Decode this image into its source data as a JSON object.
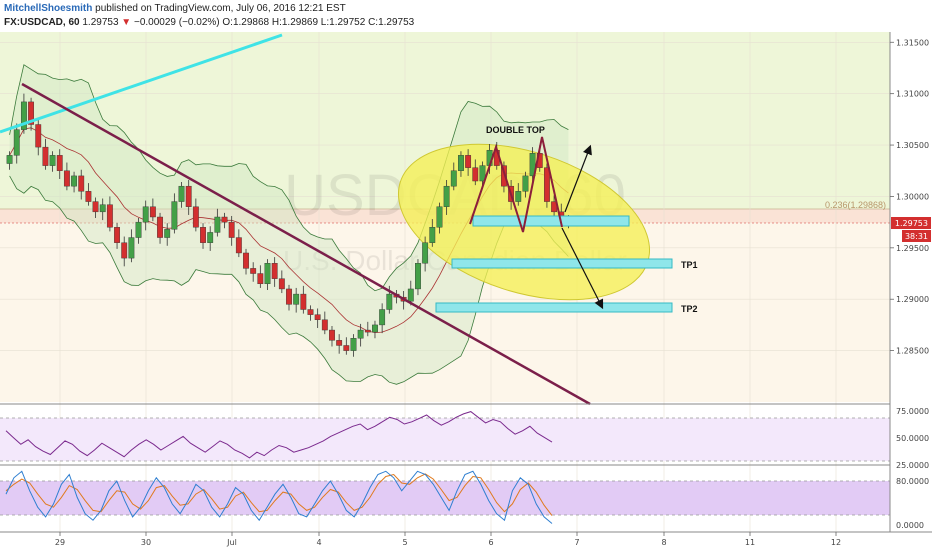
{
  "header": {
    "author": "MitchellShoesmith",
    "published": "published on TradingView.com, July 06, 2016 12:21 EST",
    "symbol": "FX:USDCAD, 60",
    "last": "1.29753",
    "change": "−0.00029 (−0.02%)",
    "ohlc": "O:1.29868 H:1.29869 L:1.29752 C:1.29753"
  },
  "watermark": {
    "line1": "USDCAD, 60",
    "line2": "U.S. Dollar/Canadian Dollar"
  },
  "annotations": {
    "double_top": "DOUBLE TOP",
    "tp1": "TP1",
    "tp2": "TP2",
    "fib": "0.236(1.29868)"
  },
  "price_axis": {
    "ticks": [
      "1.31500",
      "1.31000",
      "1.30500",
      "1.30000",
      "1.29500",
      "1.29000",
      "1.28500"
    ],
    "current": "1.29753",
    "countdown": "38:31"
  },
  "rsi_axis": {
    "ticks": [
      "75.0000",
      "50.0000",
      "25.0000"
    ]
  },
  "stoch_axis": {
    "ticks": [
      "80.0000",
      "0.0000"
    ]
  },
  "time_axis": {
    "ticks": [
      "29",
      "30",
      "Jul",
      "4",
      "5",
      "6",
      "7",
      "8",
      "11",
      "12"
    ]
  },
  "colors": {
    "up": "#43a047",
    "down": "#d32f2f",
    "trend": "#7b1f4a",
    "cyan": "#3fe3e6",
    "zone": "#8fe6ea",
    "ellipse": "#f5ef55"
  },
  "chart_data": {
    "type": "candlestick",
    "title": "FX:USDCAD, 60",
    "ylim": [
      1.28,
      1.316
    ],
    "x_labels": [
      "29",
      "30",
      "Jul",
      "4",
      "5",
      "6",
      "7",
      "8",
      "11",
      "12"
    ],
    "closes": [
      1.304,
      1.3065,
      1.3092,
      1.307,
      1.3048,
      1.303,
      1.304,
      1.3025,
      1.301,
      1.302,
      1.3005,
      1.2995,
      1.2985,
      1.2992,
      1.297,
      1.2955,
      1.294,
      1.296,
      1.2975,
      1.299,
      1.298,
      1.296,
      1.2968,
      1.2995,
      1.301,
      1.299,
      1.297,
      1.2955,
      1.2965,
      1.298,
      1.2975,
      1.296,
      1.2945,
      1.293,
      1.2925,
      1.2915,
      1.2935,
      1.292,
      1.291,
      1.2895,
      1.2905,
      1.289,
      1.2885,
      1.288,
      1.287,
      1.286,
      1.2855,
      1.285,
      1.2862,
      1.287,
      1.2868,
      1.2875,
      1.289,
      1.2905,
      1.2902,
      1.2898,
      1.291,
      1.2935,
      1.2955,
      1.297,
      1.299,
      1.301,
      1.3025,
      1.304,
      1.3028,
      1.3015,
      1.303,
      1.3045,
      1.303,
      1.301,
      1.2995,
      1.3005,
      1.302,
      1.3042,
      1.3028,
      1.2995,
      1.2985,
      1.2978,
      1.2975
    ],
    "series": [
      {
        "name": "RSI",
        "values": [
          58,
          52,
          46,
          50,
          44,
          40,
          37,
          43,
          49,
          46,
          40,
          36,
          41,
          47,
          43,
          39,
          35,
          41,
          46,
          50,
          46,
          41,
          45,
          49,
          53,
          47,
          43,
          39,
          44,
          49,
          46,
          41,
          38,
          34,
          39,
          36,
          41,
          45,
          43,
          39,
          41,
          43,
          46,
          49,
          53,
          56,
          59,
          62,
          64,
          59,
          62,
          66,
          70,
          68,
          64,
          66,
          69,
          72,
          67,
          63,
          66,
          70,
          73,
          75,
          70,
          65,
          68,
          66,
          60,
          55,
          58,
          62,
          56,
          52,
          48
        ]
      },
      {
        "name": "Stochastic %K",
        "values": [
          55,
          80,
          90,
          60,
          35,
          20,
          40,
          70,
          85,
          50,
          25,
          15,
          30,
          60,
          75,
          45,
          20,
          35,
          60,
          80,
          65,
          40,
          25,
          45,
          70,
          60,
          35,
          20,
          40,
          65,
          55,
          30,
          15,
          35,
          55,
          70,
          50,
          25,
          20,
          40,
          60,
          75,
          55,
          30,
          20,
          40,
          65,
          85,
          90,
          80,
          60,
          75,
          90,
          85,
          70,
          50,
          30,
          60,
          85,
          90,
          70,
          45,
          25,
          15,
          60,
          80,
          70,
          40,
          20,
          10
        ]
      },
      {
        "name": "Stochastic %D",
        "values": [
          60,
          70,
          78,
          72,
          55,
          40,
          35,
          50,
          68,
          62,
          45,
          30,
          28,
          45,
          60,
          58,
          40,
          32,
          45,
          65,
          68,
          52,
          38,
          40,
          55,
          62,
          48,
          32,
          35,
          52,
          58,
          42,
          28,
          30,
          45,
          58,
          55,
          40,
          30,
          35,
          50,
          62,
          58,
          42,
          30,
          35,
          50,
          70,
          82,
          85,
          72,
          70,
          80,
          86,
          78,
          62,
          45,
          50,
          68,
          82,
          80,
          62,
          42,
          28,
          40,
          62,
          72,
          58,
          38,
          22
        ]
      }
    ]
  }
}
